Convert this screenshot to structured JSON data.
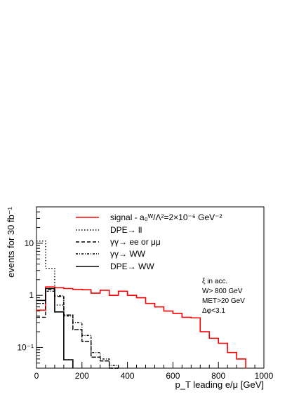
{
  "chart_data": {
    "type": "line",
    "title": "",
    "xlabel": "p_T leading e/μ [GeV]",
    "ylabel": "events for 30 fb⁻¹",
    "xlim": [
      0,
      1000
    ],
    "ylim": [
      0.04,
      50
    ],
    "y_scale": "log",
    "grid": false,
    "legend_placement": "top-center",
    "x_ticks": [
      "0",
      "200",
      "400",
      "600",
      "800",
      "1000"
    ],
    "y_ticks": [
      "10⁻¹",
      "1",
      "10"
    ],
    "annotations": [
      "ξ in acc.",
      "W> 800 GeV",
      "MET>20 GeV",
      "Δφ<3.1"
    ],
    "series": [
      {
        "name": "signal - a₀ᵂ/Λ²=2×10⁻⁶ GeV⁻²",
        "style": "solid",
        "color": "#ff0000",
        "bin_edges": [
          0,
          40,
          80,
          120,
          160,
          200,
          240,
          280,
          320,
          360,
          400,
          440,
          480,
          520,
          560,
          600,
          640,
          680,
          720,
          760,
          800,
          840,
          880,
          920
        ],
        "values": [
          0.52,
          1.45,
          1.4,
          1.35,
          1.3,
          1.28,
          1.1,
          1.25,
          1.0,
          1.2,
          1.0,
          0.9,
          0.7,
          0.6,
          0.5,
          0.45,
          0.38,
          0.37,
          0.2,
          0.15,
          0.12,
          0.08,
          0.06
        ]
      },
      {
        "name": "DPE→ ll",
        "style": "dotted",
        "color": "#000000",
        "bin_edges": [
          0,
          40,
          80,
          120,
          160,
          200,
          240,
          280,
          320,
          360
        ],
        "values": [
          11.0,
          3.3,
          0.65,
          0.42,
          0.22,
          0.13,
          0.065,
          0.055,
          0.04
        ]
      },
      {
        "name": "γγ→ ee or μμ",
        "style": "dashed",
        "color": "#000000",
        "bin_edges": [
          0,
          40,
          80,
          120,
          160,
          200,
          240,
          280,
          320,
          360
        ],
        "values": [
          0.38,
          1.3,
          0.95,
          0.42,
          0.22,
          0.13,
          0.065,
          0.055,
          0.04
        ]
      },
      {
        "name": "γγ→ WW",
        "style": "dashdot",
        "color": "#000000",
        "bin_edges": [
          0,
          40,
          80,
          120,
          160,
          200,
          240,
          280,
          320,
          360
        ],
        "values": [
          0.7,
          1.2,
          0.98,
          0.4,
          0.3,
          0.17,
          0.08,
          0.06,
          0.045
        ]
      },
      {
        "name": "DPE→ WW",
        "style": "solid",
        "color": "#000000",
        "bin_edges": [
          0,
          40,
          80,
          120,
          160
        ],
        "values": [
          0.8,
          1.35,
          0.48,
          0.058
        ]
      }
    ]
  }
}
